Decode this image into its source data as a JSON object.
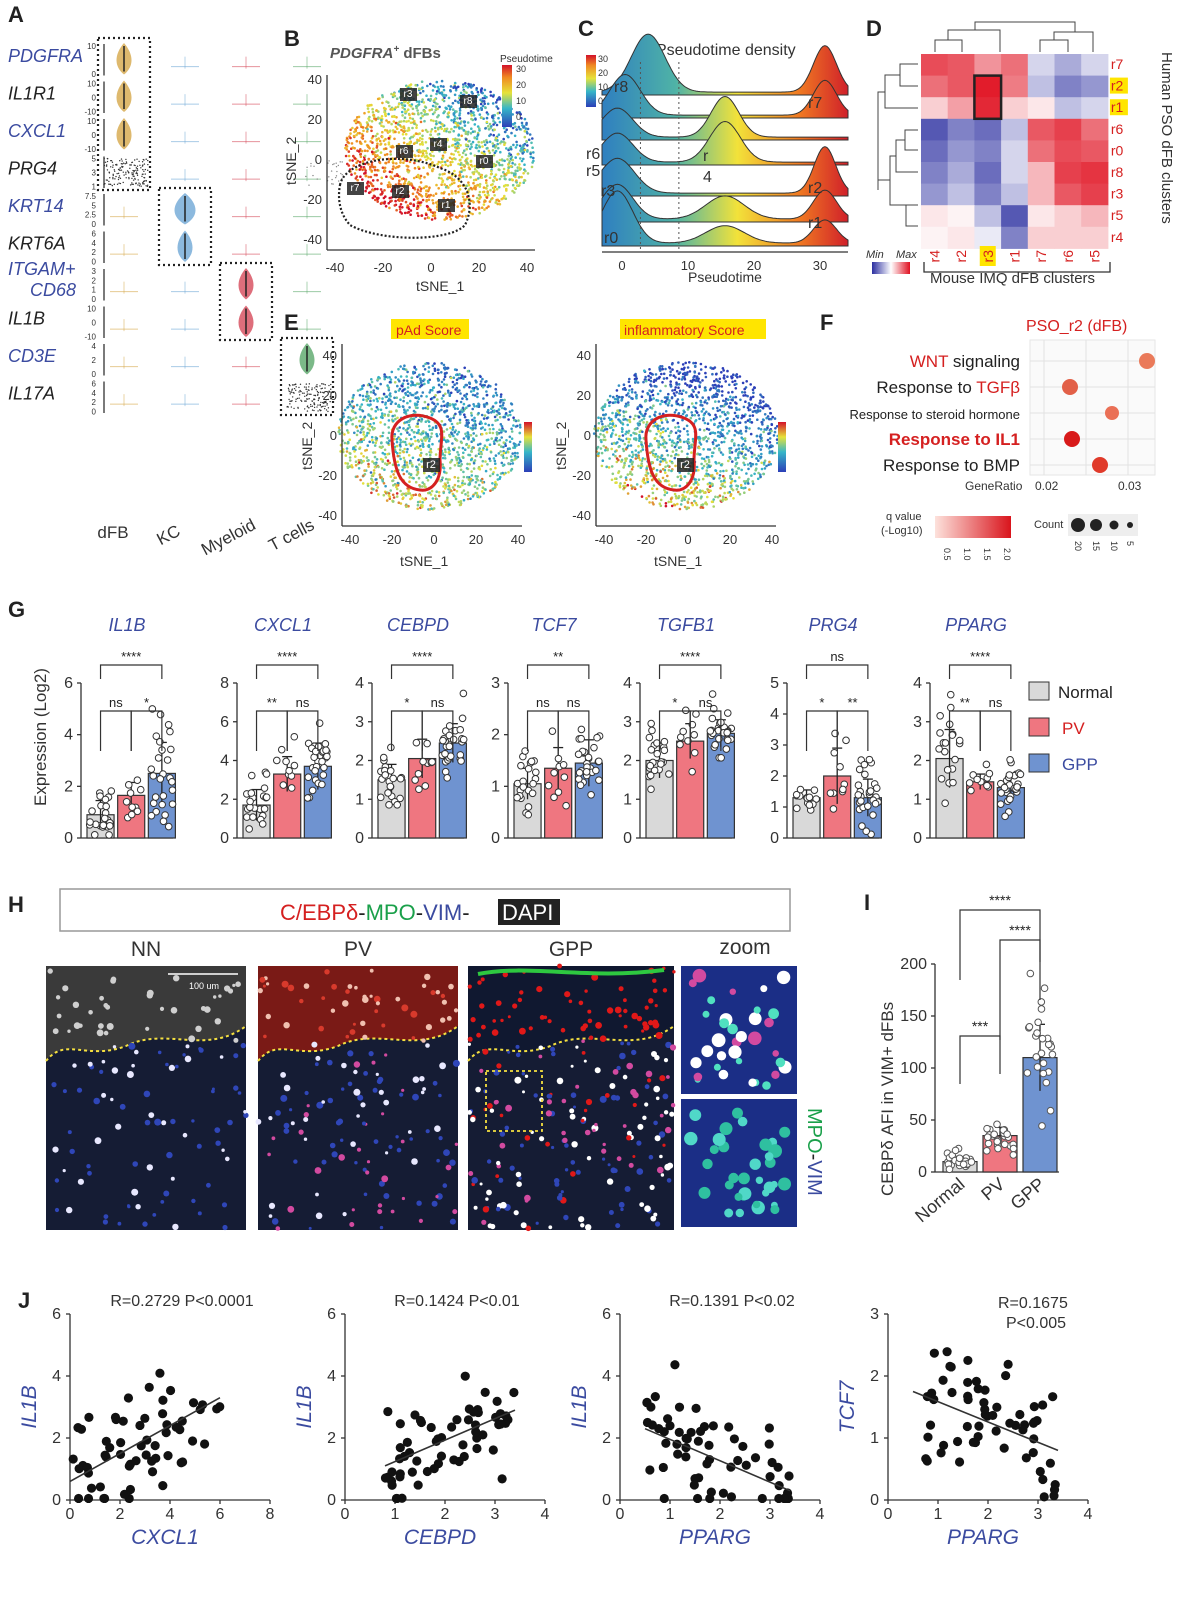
{
  "panels": {
    "A": {
      "label": "A",
      "genes": [
        {
          "name": "PDGFRA",
          "color": "blue",
          "ticks": [
            "10",
            "0"
          ],
          "hot": 0
        },
        {
          "name": "IL1R1",
          "color": "dark",
          "ticks": [
            "10",
            "0",
            "-10"
          ],
          "hot": 0
        },
        {
          "name": "CXCL1",
          "color": "blue",
          "ticks": [
            "10",
            "0",
            "-10"
          ],
          "hot": 0
        },
        {
          "name": "PRG4",
          "color": "dark",
          "ticks": [
            "5",
            "3",
            "1"
          ],
          "hot": 0
        },
        {
          "name": "KRT14",
          "color": "blue",
          "ticks": [
            "7.5",
            "5",
            "2.5",
            "0"
          ],
          "hot": 1
        },
        {
          "name": "KRT6A",
          "color": "dark",
          "ticks": [
            "6",
            "4",
            "2",
            "0"
          ],
          "hot": 1
        },
        {
          "name": "ITGAM+",
          "name2": "CD68",
          "color": "blue",
          "ticks": [
            "3",
            "2",
            "1",
            "0"
          ],
          "hot": 2
        },
        {
          "name": "IL1B",
          "color": "dark",
          "ticks": [
            "10",
            "0",
            "-10"
          ],
          "hot": 2
        },
        {
          "name": "CD3E",
          "color": "blue",
          "ticks": [
            "4",
            "2",
            "0"
          ],
          "hot": 3
        },
        {
          "name": "IL17A",
          "color": "dark",
          "ticks": [
            "6",
            "4",
            "2",
            "0"
          ],
          "hot": 3
        }
      ],
      "groups": [
        "dFB",
        "KC",
        "Myeloid",
        "T cells"
      ]
    },
    "B": {
      "label": "B",
      "title": "PDGFRA",
      "title_sup": "+",
      "title_rest": " dFBs",
      "xlabel": "tSNE_1",
      "ylabel": "tSNE_2",
      "xticks": [
        "-40",
        "-20",
        "0",
        "20",
        "40"
      ],
      "yticks": [
        "40",
        "20",
        "0",
        "-20",
        "-40"
      ],
      "colorbar_title": "Pseudotime",
      "colorbar_ticks": [
        "30",
        "20",
        "10",
        "0"
      ],
      "clusters": [
        "r3",
        "r8",
        "r6",
        "r4",
        "r0",
        "r7",
        "r2",
        "r1"
      ]
    },
    "C": {
      "label": "C",
      "title": "Pseudotime density",
      "xlabel": "Pseudotime",
      "xticks": [
        "0",
        "10",
        "20",
        "30"
      ],
      "colorbar_ticks": [
        "30",
        "20",
        "10",
        "0"
      ],
      "labels": [
        "r8",
        "r7",
        "r6",
        "r5",
        "r",
        "4",
        "r3",
        "r2",
        "r1",
        "r0"
      ]
    },
    "D": {
      "label": "D",
      "rows": [
        "r7",
        "r2",
        "r1",
        "r6",
        "r0",
        "r8",
        "r3",
        "r5",
        "r4"
      ],
      "cols": [
        "r4",
        "r2",
        "r3",
        "r1",
        "r7",
        "r6",
        "r5"
      ],
      "ylabel": "Human PSO dFB clusters",
      "xlabel": "Mouse IMQ dFB clusters",
      "legend_min": "Min",
      "legend_max": "Max"
    },
    "E": {
      "label": "E",
      "left_title": "pAd Score",
      "right_title": "inflammatory Score",
      "xlabel": "tSNE_1",
      "ylabel": "tSNE_2",
      "cluster": "r2",
      "xticks": [
        "-40",
        "-20",
        "0",
        "20",
        "40"
      ],
      "yticks": [
        "40",
        "20",
        "0",
        "-20",
        "-40"
      ]
    },
    "F": {
      "label": "F",
      "title": "PSO_r2 (dFB)",
      "terms": [
        {
          "pre": "WNT",
          "post": " signaling",
          "bold": false
        },
        {
          "pre": "Response to ",
          "hl": "TGFβ",
          "bold": false
        },
        {
          "pre": "Response to steroid hormone",
          "bold": false,
          "small": true
        },
        {
          "pre": "Response to IL1",
          "bold": true
        },
        {
          "pre": "Response to BMP",
          "bold": false
        }
      ],
      "xlabel": "GeneRatio",
      "xticks": [
        "0.02",
        "0.03"
      ],
      "qlabel1": "q value",
      "qlabel2": "(-Log10)",
      "qticks": [
        "0.5",
        "1.0",
        "1.5",
        "2.0"
      ],
      "count_label": "Count",
      "count_ticks": [
        "20",
        "15",
        "10",
        "5"
      ]
    },
    "G": {
      "label": "G",
      "ylabel": "Expression (Log2)",
      "legend": [
        "Normal",
        "PV",
        "GPP"
      ]
    },
    "H": {
      "label": "H",
      "stain_1": "C/EBPδ",
      "stain_sep": "-",
      "stain_2": "MPO",
      "stain_3": "VIM",
      "stain_4": "DAPI",
      "titles": [
        "NN",
        "PV",
        "GPP",
        "zoom"
      ],
      "scalebar": "100 um",
      "side_1": "MPO",
      "side_2": "VIM"
    },
    "I": {
      "label": "I",
      "ylabel": "CEBPδ AFI in VIM+ dFBs"
    },
    "J": {
      "label": "J"
    }
  },
  "chart_data": [
    {
      "type": "bar",
      "title": "IL1B",
      "categories": [
        "Normal",
        "PV",
        "GPP"
      ],
      "values": [
        0.9,
        1.65,
        2.5
      ],
      "errors": [
        0.55,
        0.5,
        1.2
      ],
      "ylim": [
        0,
        6
      ],
      "yticks": [
        0,
        2,
        4,
        6
      ],
      "sig": [
        {
          "a": 0,
          "b": 2,
          "label": "****"
        },
        {
          "a": 0,
          "b": 1,
          "label": "ns"
        },
        {
          "a": 1,
          "b": 2,
          "label": "*"
        }
      ],
      "n": [
        22,
        10,
        28
      ]
    },
    {
      "type": "bar",
      "title": "CXCL1",
      "categories": [
        "Normal",
        "PV",
        "GPP"
      ],
      "values": [
        1.7,
        3.3,
        3.7
      ],
      "errors": [
        0.8,
        0.9,
        1.2
      ],
      "ylim": [
        0,
        8
      ],
      "yticks": [
        0,
        2,
        4,
        6,
        8
      ],
      "sig": [
        {
          "a": 0,
          "b": 2,
          "label": "****"
        },
        {
          "a": 0,
          "b": 1,
          "label": "**"
        },
        {
          "a": 1,
          "b": 2,
          "label": "ns"
        }
      ],
      "n": [
        22,
        10,
        28
      ]
    },
    {
      "type": "bar",
      "title": "CEBPD",
      "categories": [
        "Normal",
        "PV",
        "GPP"
      ],
      "values": [
        1.5,
        2.05,
        2.45
      ],
      "errors": [
        0.4,
        0.5,
        0.5
      ],
      "ylim": [
        0,
        4
      ],
      "yticks": [
        0,
        1,
        2,
        3,
        4
      ],
      "sig": [
        {
          "a": 0,
          "b": 2,
          "label": "****"
        },
        {
          "a": 0,
          "b": 1,
          "label": "*"
        },
        {
          "a": 1,
          "b": 2,
          "label": "ns"
        }
      ],
      "n": [
        22,
        10,
        28
      ]
    },
    {
      "type": "bar",
      "title": "TCF7",
      "categories": [
        "Normal",
        "PV",
        "GPP"
      ],
      "values": [
        1.05,
        1.35,
        1.45
      ],
      "errors": [
        0.3,
        0.4,
        0.45
      ],
      "ylim": [
        0,
        3
      ],
      "yticks": [
        0,
        1,
        2,
        3
      ],
      "sig": [
        {
          "a": 0,
          "b": 2,
          "label": "**"
        },
        {
          "a": 0,
          "b": 1,
          "label": "ns"
        },
        {
          "a": 1,
          "b": 2,
          "label": "ns"
        }
      ],
      "n": [
        22,
        10,
        28
      ]
    },
    {
      "type": "bar",
      "title": "TGFB1",
      "categories": [
        "Normal",
        "PV",
        "GPP"
      ],
      "values": [
        2.0,
        2.5,
        2.7
      ],
      "errors": [
        0.45,
        0.45,
        0.35
      ],
      "ylim": [
        0,
        4
      ],
      "yticks": [
        0,
        1,
        2,
        3,
        4
      ],
      "sig": [
        {
          "a": 0,
          "b": 2,
          "label": "****"
        },
        {
          "a": 0,
          "b": 1,
          "label": "*"
        },
        {
          "a": 1,
          "b": 2,
          "label": "ns"
        }
      ],
      "n": [
        22,
        10,
        28
      ]
    },
    {
      "type": "bar",
      "title": "PRG4",
      "categories": [
        "Normal",
        "PV",
        "GPP"
      ],
      "values": [
        1.3,
        2.0,
        1.3
      ],
      "errors": [
        0.25,
        0.9,
        0.6
      ],
      "ylim": [
        0,
        5
      ],
      "yticks": [
        0,
        1,
        2,
        3,
        4,
        5
      ],
      "sig": [
        {
          "a": 0,
          "b": 2,
          "label": "ns"
        },
        {
          "a": 0,
          "b": 1,
          "label": "*"
        },
        {
          "a": 1,
          "b": 2,
          "label": "**"
        }
      ],
      "n": [
        15,
        10,
        28
      ]
    },
    {
      "type": "bar",
      "title": "PPARG",
      "categories": [
        "Normal",
        "PV",
        "GPP"
      ],
      "values": [
        2.05,
        1.45,
        1.3
      ],
      "errors": [
        0.75,
        0.2,
        0.35
      ],
      "ylim": [
        0,
        4
      ],
      "yticks": [
        0,
        1,
        2,
        3,
        4
      ],
      "sig": [
        {
          "a": 0,
          "b": 2,
          "label": "****"
        },
        {
          "a": 0,
          "b": 1,
          "label": "**"
        },
        {
          "a": 1,
          "b": 2,
          "label": "ns"
        }
      ],
      "n": [
        20,
        10,
        28
      ]
    },
    {
      "type": "bar",
      "title": "",
      "categories": [
        "Normal",
        "PV",
        "GPP"
      ],
      "values": [
        10,
        35,
        110
      ],
      "errors": [
        4,
        8,
        32
      ],
      "ylim": [
        0,
        200
      ],
      "yticks": [
        0,
        50,
        100,
        150,
        200
      ],
      "sig": [
        {
          "a": 0,
          "b": 2,
          "label": "****"
        },
        {
          "a": 1,
          "b": 2,
          "label": "****"
        },
        {
          "a": 0,
          "b": 1,
          "label": "***"
        }
      ],
      "n": [
        25,
        25,
        25
      ]
    },
    {
      "type": "scatter",
      "xlabel": "CXCL1",
      "ylabel": "IL1B",
      "annotation": "R=0.2729 P<0.0001",
      "xlim": [
        0,
        8
      ],
      "ylim": [
        0,
        6
      ],
      "xticks": [
        0,
        2,
        4,
        6,
        8
      ],
      "yticks": [
        0,
        2,
        4,
        6
      ],
      "fit": [
        [
          0,
          0.6
        ],
        [
          6,
          3.3
        ]
      ]
    },
    {
      "type": "scatter",
      "xlabel": "CEBPD",
      "ylabel": "IL1B",
      "annotation": "R=0.1424 P<0.01",
      "xlim": [
        0,
        4
      ],
      "ylim": [
        0,
        6
      ],
      "xticks": [
        0,
        1,
        2,
        3,
        4
      ],
      "yticks": [
        0,
        2,
        4,
        6
      ],
      "fit": [
        [
          0.8,
          1.1
        ],
        [
          3.4,
          2.9
        ]
      ]
    },
    {
      "type": "scatter",
      "xlabel": "PPARG",
      "ylabel": "IL1B",
      "annotation": "R=0.1391 P<0.02",
      "xlim": [
        0,
        4
      ],
      "ylim": [
        0,
        6
      ],
      "xticks": [
        0,
        1,
        2,
        3,
        4
      ],
      "yticks": [
        0,
        2,
        4,
        6
      ],
      "fit": [
        [
          0.5,
          2.3
        ],
        [
          3.4,
          0.3
        ]
      ]
    },
    {
      "type": "scatter",
      "xlabel": "PPARG",
      "ylabel": "TCF7",
      "annotation": "R=0.1675",
      "annotation2": "P<0.005",
      "xlim": [
        0,
        4
      ],
      "ylim": [
        0,
        3
      ],
      "xticks": [
        0,
        1,
        2,
        3,
        4
      ],
      "yticks": [
        0,
        1,
        2,
        3
      ],
      "fit": [
        [
          0.5,
          1.75
        ],
        [
          3.4,
          0.8
        ]
      ]
    }
  ]
}
